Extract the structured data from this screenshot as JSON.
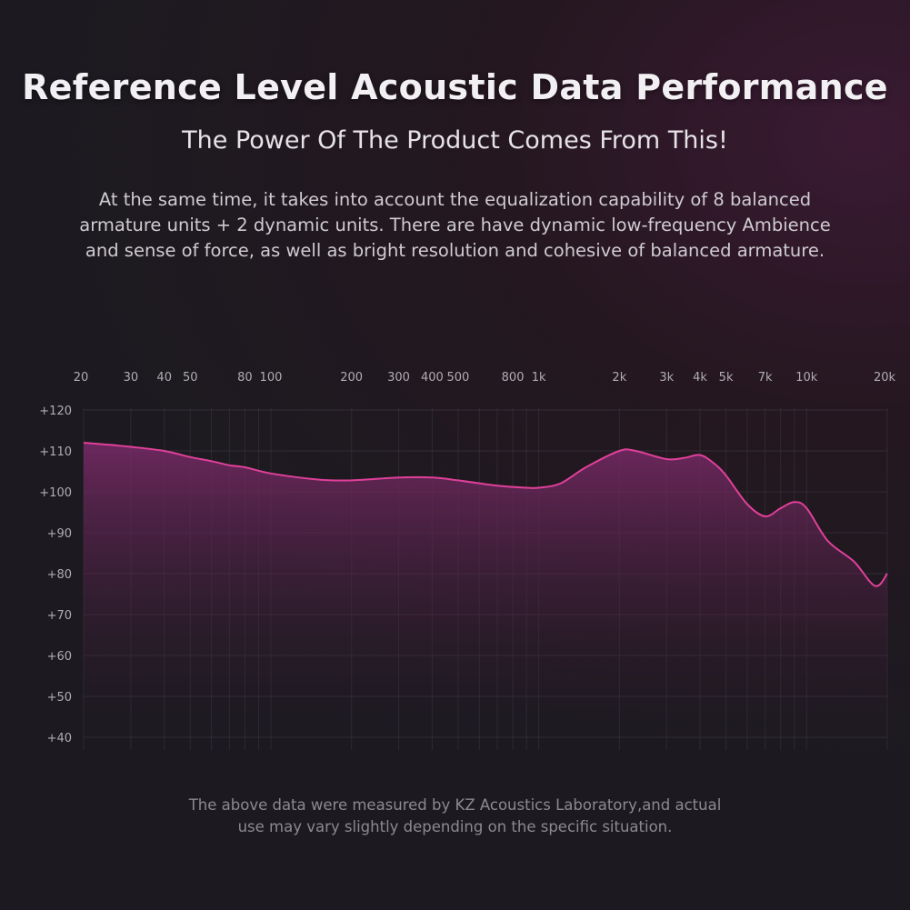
{
  "header": {
    "title": "Reference Level Acoustic Data Performance",
    "subtitle": "The Power Of The Product Comes From This!",
    "description_lines": [
      "At the same time, it takes into account the equalization capability of 8 balanced",
      "armature units + 2 dynamic units. There are have dynamic low-frequency Ambience",
      "and sense of force, as well as bright resolution and cohesive of balanced armature."
    ]
  },
  "footnote": {
    "lines": [
      "The above data were measured by KZ Acoustics Laboratory,and actual",
      "use may vary slightly depending on the specific situation."
    ]
  },
  "colors": {
    "curve": "#e0409a",
    "fill_top": "#7a2a68",
    "grid": "#3a3640"
  },
  "chart_data": {
    "type": "line",
    "title": "",
    "xlabel": "",
    "ylabel": "",
    "x_scale": "log",
    "xlim": [
      20,
      20000
    ],
    "ylim": [
      40,
      120
    ],
    "x_ticks": [
      {
        "value": 20,
        "label": "20"
      },
      {
        "value": 30,
        "label": "30"
      },
      {
        "value": 40,
        "label": "40"
      },
      {
        "value": 50,
        "label": "50"
      },
      {
        "value": 80,
        "label": "80"
      },
      {
        "value": 100,
        "label": "100"
      },
      {
        "value": 200,
        "label": "200"
      },
      {
        "value": 300,
        "label": "300"
      },
      {
        "value": 400,
        "label": "400"
      },
      {
        "value": 500,
        "label": "500"
      },
      {
        "value": 800,
        "label": "800"
      },
      {
        "value": 1000,
        "label": "1k"
      },
      {
        "value": 2000,
        "label": "2k"
      },
      {
        "value": 3000,
        "label": "3k"
      },
      {
        "value": 4000,
        "label": "4k"
      },
      {
        "value": 5000,
        "label": "5k"
      },
      {
        "value": 7000,
        "label": "7k"
      },
      {
        "value": 10000,
        "label": "10k"
      },
      {
        "value": 20000,
        "label": "20k"
      }
    ],
    "y_ticks": [
      {
        "value": 120,
        "label": "+120"
      },
      {
        "value": 110,
        "label": "+110"
      },
      {
        "value": 100,
        "label": "+100"
      },
      {
        "value": 90,
        "label": "+90"
      },
      {
        "value": 80,
        "label": "+80"
      },
      {
        "value": 70,
        "label": "+70"
      },
      {
        "value": 60,
        "label": "+60"
      },
      {
        "value": 50,
        "label": "+50"
      },
      {
        "value": 40,
        "label": "+40"
      }
    ],
    "grid": true,
    "legend": "none",
    "series": [
      {
        "x": [
          20,
          25,
          30,
          40,
          50,
          60,
          70,
          80,
          100,
          150,
          200,
          300,
          400,
          500,
          700,
          900,
          1000,
          1200,
          1500,
          2000,
          2300,
          3000,
          3500,
          4000,
          4500,
          5000,
          6000,
          7000,
          8000,
          9000,
          10000,
          12000,
          15000,
          18000,
          20000
        ],
        "y": [
          112,
          111.5,
          111,
          110,
          108.5,
          107.5,
          106.5,
          106,
          104.5,
          103,
          102.8,
          103.5,
          103.5,
          102.8,
          101.5,
          101,
          101,
          102,
          106,
          110,
          110,
          108,
          108.3,
          109,
          107,
          104,
          97,
          94,
          96,
          97.5,
          96,
          88,
          83,
          77,
          80
        ]
      }
    ]
  }
}
